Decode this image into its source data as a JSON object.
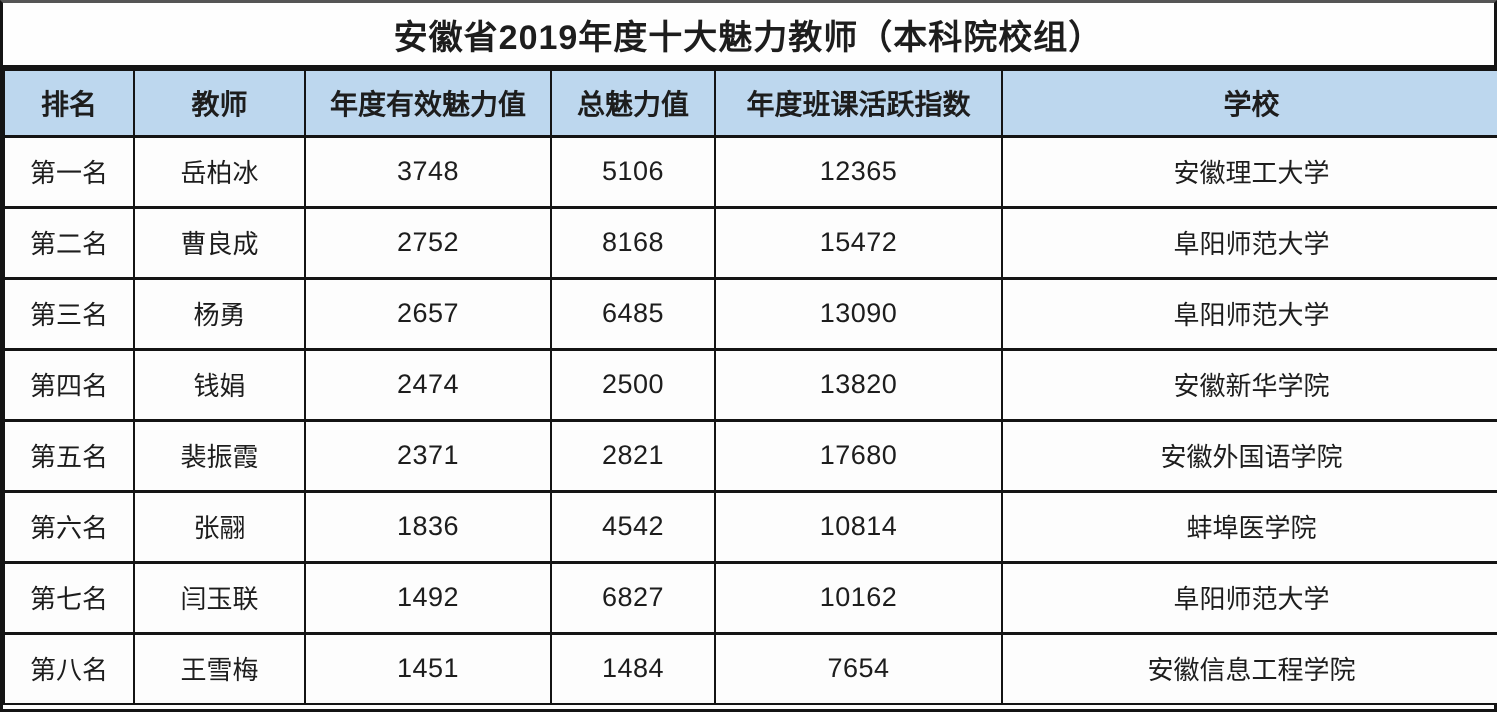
{
  "page": {
    "title": "安徽省2019年度十大魅力教师（本科院校组）"
  },
  "chart_data": {
    "type": "table",
    "title": "安徽省2019年度十大魅力教师（本科院校组）",
    "columns": [
      "排名",
      "教师",
      "年度有效魅力值",
      "总魅力值",
      "年度班课活跃指数",
      "学校"
    ],
    "rows": [
      [
        "第一名",
        "岳柏冰",
        "3748",
        "5106",
        "12365",
        "安徽理工大学"
      ],
      [
        "第二名",
        "曹良成",
        "2752",
        "8168",
        "15472",
        "阜阳师范大学"
      ],
      [
        "第三名",
        "杨勇",
        "2657",
        "6485",
        "13090",
        "阜阳师范大学"
      ],
      [
        "第四名",
        "钱娟",
        "2474",
        "2500",
        "13820",
        "安徽新华学院"
      ],
      [
        "第五名",
        "裴振霞",
        "2371",
        "2821",
        "17680",
        "安徽外国语学院"
      ],
      [
        "第六名",
        "张翮",
        "1836",
        "4542",
        "10814",
        "蚌埠医学院"
      ],
      [
        "第七名",
        "闫玉联",
        "1492",
        "6827",
        "10162",
        "阜阳师范大学"
      ],
      [
        "第八名",
        "王雪梅",
        "1451",
        "1484",
        "7654",
        "安徽信息工程学院"
      ]
    ],
    "layout": {
      "header_position": "top",
      "grid": "on",
      "numeric_columns": [
        2,
        3,
        4
      ]
    },
    "colors": {
      "header_bg": "#bdd7ee",
      "border": "#141414",
      "text": "#1d1d1d",
      "background": "#fdfdfd"
    }
  }
}
